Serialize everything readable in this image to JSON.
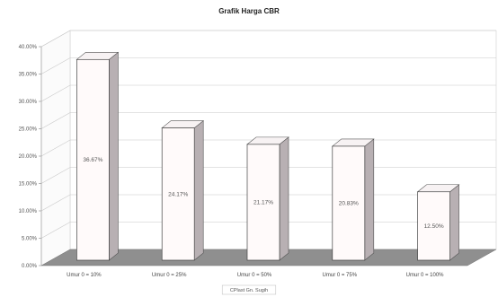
{
  "chart_data": {
    "type": "bar",
    "title": "Grafik Harga CBR",
    "xlabel": "CPlast Gn. Sugih",
    "ylabel": "",
    "ylim": [
      0,
      40
    ],
    "yticks": [
      "0.00%",
      "5.00%",
      "10.00%",
      "15.00%",
      "20.00%",
      "25.00%",
      "30.00%",
      "35.00%",
      "40.00%"
    ],
    "categories": [
      "Umur 0 = 10%",
      "Umur 0 = 25%",
      "Umur 0 = 50%",
      "Umur 0 = 75%",
      "Umur 0 = 100%"
    ],
    "values": [
      36.67,
      24.17,
      21.17,
      20.83,
      12.5
    ],
    "data_labels": [
      "36.67%",
      "24.17%",
      "21.17%",
      "20.83%",
      "12.50%"
    ],
    "grid": true,
    "style": "3d-column",
    "colors": {
      "bar_front": "#fffafa",
      "bar_side": "#b8b0b3",
      "bar_top": "#f7f2f3",
      "floor": "#8f8f8f",
      "wall": "#ffffff",
      "grid": "#c8c8c8"
    }
  }
}
